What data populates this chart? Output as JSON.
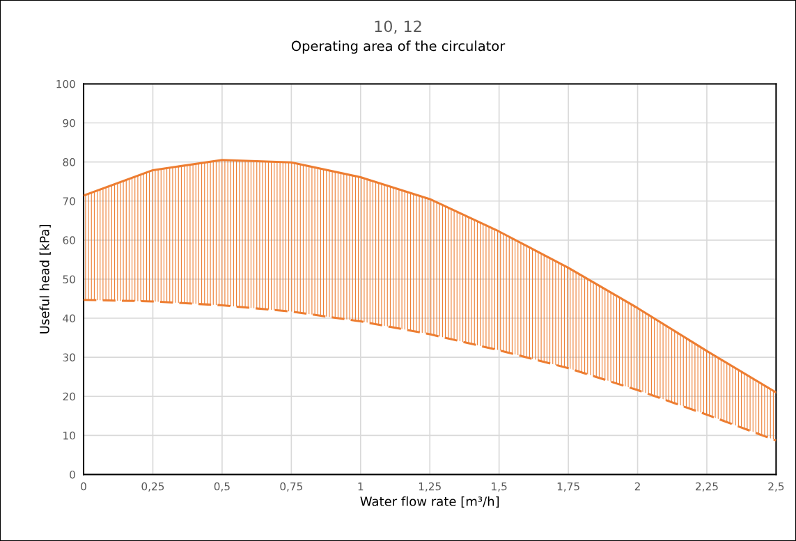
{
  "chart_data": {
    "type": "line",
    "title": "10, 12",
    "subtitle": "Operating area of the circulator",
    "xlabel": "Water flow rate [m³/h]",
    "ylabel": "Useful head [kPa]",
    "x": [
      0,
      0.25,
      0.5,
      0.75,
      1,
      1.25,
      1.5,
      1.75,
      2,
      2.25,
      2.5
    ],
    "series": [
      {
        "color": "#ed7d31",
        "line_style": "solid",
        "values": [
          71.4,
          77.9,
          80.5,
          79.9,
          76.1,
          70.5,
          62.2,
          52.9,
          42.6,
          31.6,
          21.0
        ],
        "lower": [
          44.7,
          44.3,
          43.3,
          41.7,
          39.2,
          35.9,
          31.8,
          27.2,
          21.6,
          15.3,
          8.7
        ],
        "upper": [
          71.4,
          77.9,
          80.5,
          79.9,
          76.1,
          70.5,
          62.2,
          52.9,
          42.6,
          31.6,
          21.0
        ]
      },
      {
        "color": "#ed7d31",
        "line_style": "dashed",
        "values": [
          44.7,
          44.3,
          43.3,
          41.7,
          39.2,
          35.9,
          31.8,
          27.2,
          21.6,
          15.3,
          8.7
        ]
      }
    ],
    "xlim": [
      0,
      2.5
    ],
    "xticks": [
      0,
      {
        "value": 0.25,
        "label": "0,25"
      },
      {
        "value": 0.5,
        "label": "0,5"
      },
      {
        "value": 0.75,
        "label": "0,75"
      },
      1,
      {
        "value": 1.25,
        "label": "1,25"
      },
      {
        "value": 1.5,
        "label": "1,5"
      },
      {
        "value": 1.75,
        "label": "1,75"
      },
      2,
      {
        "value": 2.25,
        "label": "2,25"
      },
      {
        "value": 2.5,
        "label": "2,5"
      }
    ],
    "ylim": [
      0,
      100
    ],
    "yticks": [
      0,
      10,
      20,
      30,
      40,
      50,
      60,
      70,
      80,
      90,
      100
    ],
    "grid": true,
    "marker": "none"
  }
}
